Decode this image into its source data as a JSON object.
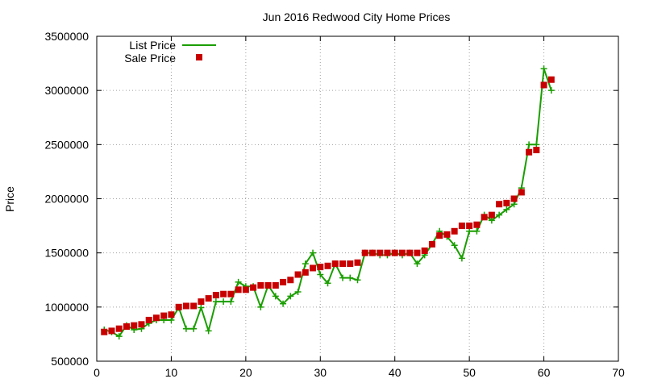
{
  "colors": {
    "list": "#1a9e00",
    "sale": "#c80000",
    "grid": "#a0a0a0",
    "axis": "#000000"
  },
  "chart_data": {
    "type": "line",
    "title": "Jun 2016 Redwood City Home Prices",
    "xlabel": "",
    "ylabel": "Price",
    "xlim": [
      0,
      70
    ],
    "ylim": [
      500000,
      3500000
    ],
    "xticks": [
      0,
      10,
      20,
      30,
      40,
      50,
      60,
      70
    ],
    "yticks": [
      500000,
      1000000,
      1500000,
      2000000,
      2500000,
      3000000,
      3500000
    ],
    "grid": "dotted",
    "legend_position": "top-left",
    "series": [
      {
        "name": "List Price",
        "style": "line-plus",
        "x": [
          1,
          2,
          3,
          4,
          5,
          6,
          7,
          8,
          9,
          10,
          11,
          12,
          13,
          14,
          15,
          16,
          17,
          18,
          19,
          20,
          21,
          22,
          23,
          24,
          25,
          26,
          27,
          28,
          29,
          30,
          31,
          32,
          33,
          34,
          35,
          36,
          37,
          38,
          39,
          40,
          41,
          42,
          43,
          44,
          45,
          46,
          47,
          48,
          49,
          50,
          51,
          52,
          53,
          54,
          55,
          56,
          57,
          58,
          59,
          60,
          61
        ],
        "y": [
          790000,
          770000,
          730000,
          830000,
          790000,
          800000,
          850000,
          880000,
          880000,
          880000,
          995000,
          800000,
          800000,
          995000,
          780000,
          1050000,
          1050000,
          1050000,
          1230000,
          1190000,
          1190000,
          1000000,
          1200000,
          1100000,
          1030000,
          1100000,
          1140000,
          1400000,
          1500000,
          1300000,
          1220000,
          1400000,
          1270000,
          1270000,
          1250000,
          1500000,
          1500000,
          1480000,
          1480000,
          1500000,
          1480000,
          1500000,
          1400000,
          1480000,
          1580000,
          1700000,
          1650000,
          1570000,
          1450000,
          1700000,
          1700000,
          1850000,
          1800000,
          1850000,
          1900000,
          1950000,
          2100000,
          2500000,
          2500000,
          3200000,
          3000000
        ]
      },
      {
        "name": "Sale Price",
        "style": "square",
        "x": [
          1,
          2,
          3,
          4,
          5,
          6,
          7,
          8,
          9,
          10,
          11,
          12,
          13,
          14,
          15,
          16,
          17,
          18,
          19,
          20,
          21,
          22,
          23,
          24,
          25,
          26,
          27,
          28,
          29,
          30,
          31,
          32,
          33,
          34,
          35,
          36,
          37,
          38,
          39,
          40,
          41,
          42,
          43,
          44,
          45,
          46,
          47,
          48,
          49,
          50,
          51,
          52,
          53,
          54,
          55,
          56,
          57,
          58,
          59,
          60,
          61
        ],
        "y": [
          770000,
          780000,
          800000,
          820000,
          830000,
          840000,
          880000,
          900000,
          920000,
          930000,
          1000000,
          1010000,
          1010000,
          1050000,
          1080000,
          1110000,
          1120000,
          1120000,
          1160000,
          1160000,
          1180000,
          1200000,
          1200000,
          1200000,
          1230000,
          1250000,
          1300000,
          1320000,
          1360000,
          1370000,
          1380000,
          1400000,
          1400000,
          1400000,
          1410000,
          1500000,
          1500000,
          1500000,
          1500000,
          1500000,
          1500000,
          1500000,
          1500000,
          1520000,
          1580000,
          1660000,
          1670000,
          1700000,
          1750000,
          1750000,
          1760000,
          1830000,
          1850000,
          1950000,
          1960000,
          2000000,
          2060000,
          2430000,
          2450000,
          3050000,
          3100000
        ]
      }
    ]
  }
}
